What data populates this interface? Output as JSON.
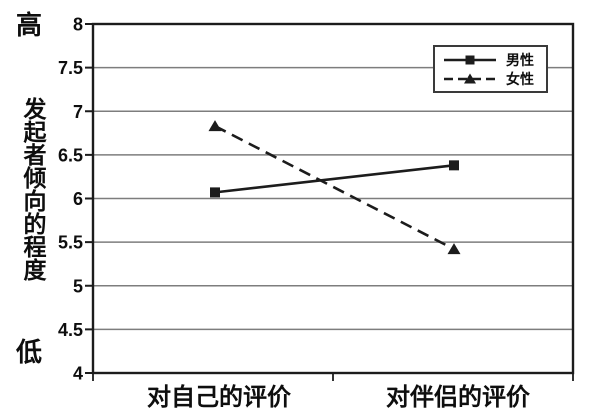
{
  "figure": {
    "y_axis_high_label": "高",
    "y_axis_title": "发起者倾向的程度",
    "y_axis_low_label": "低"
  },
  "chart_data": {
    "type": "line",
    "categories": [
      "对自己的评价",
      "对伴侣的评价"
    ],
    "series": [
      {
        "name": "男性",
        "values": [
          6.07,
          6.38
        ],
        "marker": "square",
        "line_style": "solid"
      },
      {
        "name": "女性",
        "values": [
          6.83,
          5.42
        ],
        "marker": "triangle",
        "line_style": "dashed"
      }
    ],
    "ylim": [
      4,
      8
    ],
    "ytick_step": 0.5,
    "ytick_labels": [
      "4",
      "4.5",
      "5",
      "5.5",
      "6",
      "6.5",
      "7",
      "7.5",
      "8"
    ],
    "grid": true,
    "legend_position": "top-right",
    "xlabel": "",
    "ylabel": "发起者倾向的程度",
    "colors": {
      "line": "#1c1c1c",
      "grid": "#7d7d7d",
      "text": "#0e0e0e",
      "background": "#ffffff"
    }
  }
}
